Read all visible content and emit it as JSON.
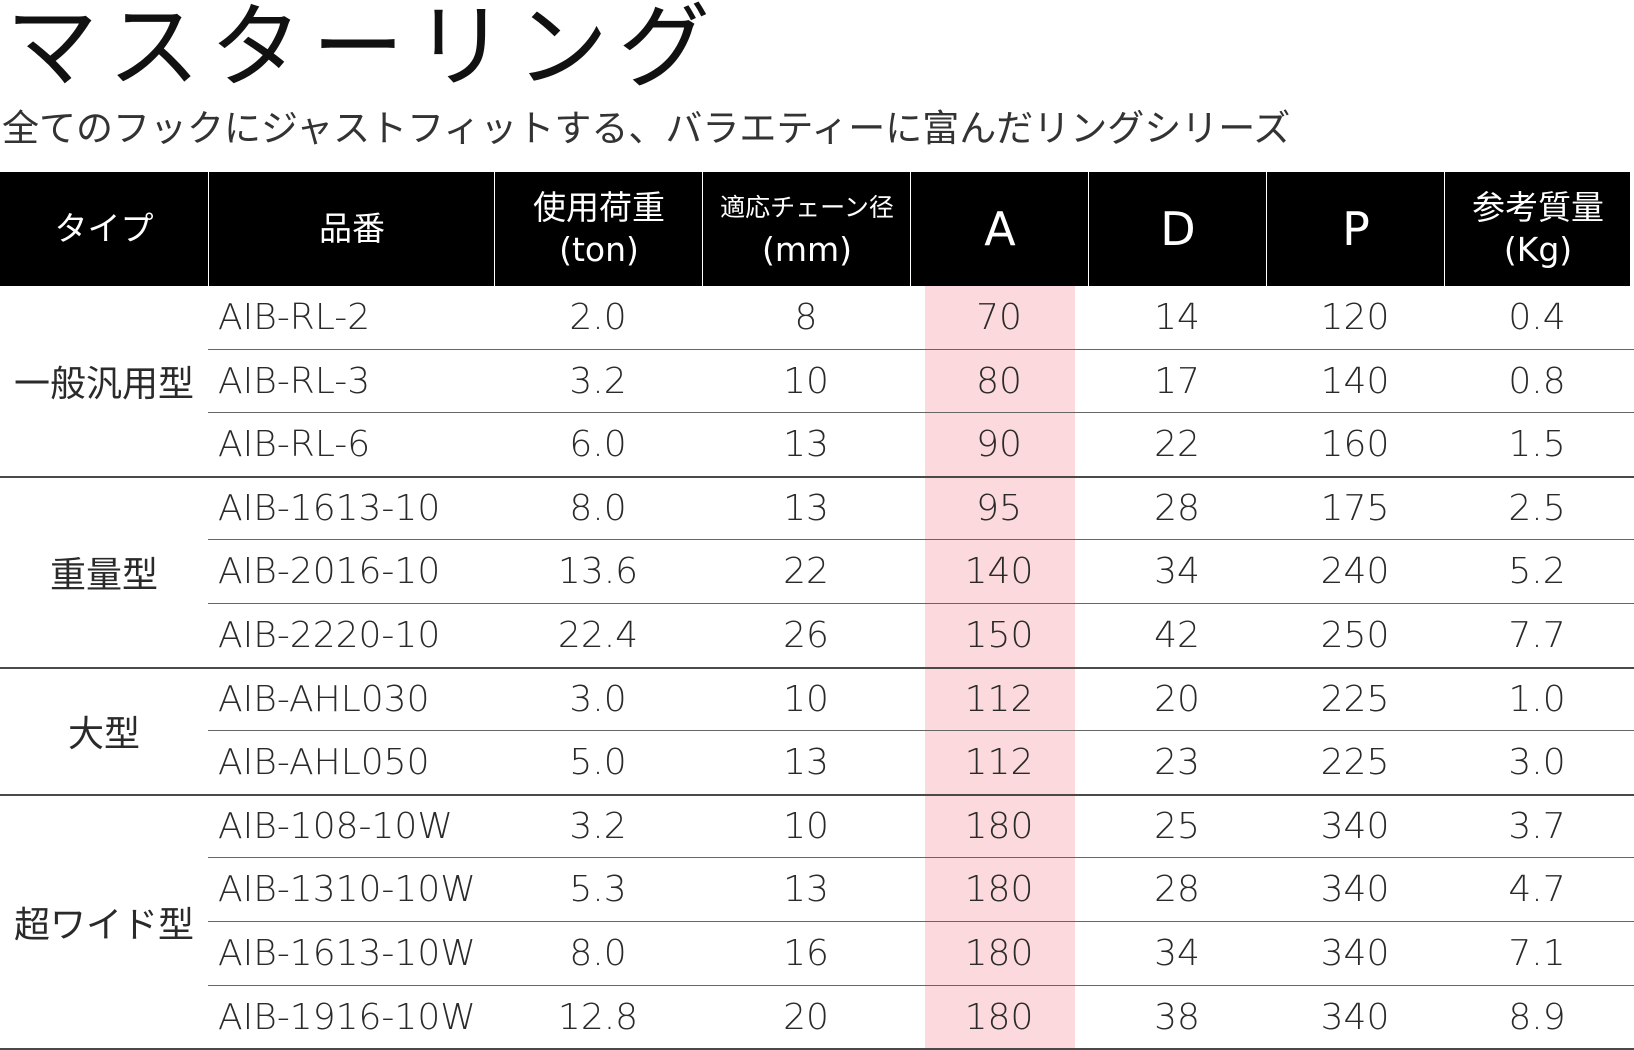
{
  "title": "マスターリング",
  "subtitle": "全てのフックにジャストフィットする、バラエティーに富んだリングシリーズ",
  "table": {
    "headers": [
      {
        "line1": "タイプ",
        "line2": "",
        "style": "normal"
      },
      {
        "line1": "品番",
        "line2": "",
        "style": "normal"
      },
      {
        "line1": "使用荷重",
        "line2": "(ton)",
        "style": "normal"
      },
      {
        "line1": "適応チェーン径",
        "line2": "(mm)",
        "style": "small"
      },
      {
        "line1": "A",
        "line2": "",
        "style": "big"
      },
      {
        "line1": "D",
        "line2": "",
        "style": "big"
      },
      {
        "line1": "P",
        "line2": "",
        "style": "big"
      },
      {
        "line1": "参考質量",
        "line2": "(Kg)",
        "style": "normal"
      }
    ],
    "highlight_color": "#fbd9dc",
    "groups": [
      {
        "type": "一般汎用型",
        "rows": [
          {
            "part": "AIB-RL-2",
            "load": "2.0",
            "chain": "8",
            "a": "70",
            "d": "14",
            "p": "120",
            "mass": "0.4"
          },
          {
            "part": "AIB-RL-3",
            "load": "3.2",
            "chain": "10",
            "a": "80",
            "d": "17",
            "p": "140",
            "mass": "0.8"
          },
          {
            "part": "AIB-RL-6",
            "load": "6.0",
            "chain": "13",
            "a": "90",
            "d": "22",
            "p": "160",
            "mass": "1.5"
          }
        ]
      },
      {
        "type": "重量型",
        "rows": [
          {
            "part": "AIB-1613-10",
            "load": "8.0",
            "chain": "13",
            "a": "95",
            "d": "28",
            "p": "175",
            "mass": "2.5"
          },
          {
            "part": "AIB-2016-10",
            "load": "13.6",
            "chain": "22",
            "a": "140",
            "d": "34",
            "p": "240",
            "mass": "5.2"
          },
          {
            "part": "AIB-2220-10",
            "load": "22.4",
            "chain": "26",
            "a": "150",
            "d": "42",
            "p": "250",
            "mass": "7.7"
          }
        ]
      },
      {
        "type": "大型",
        "rows": [
          {
            "part": "AIB-AHL030",
            "load": "3.0",
            "chain": "10",
            "a": "112",
            "d": "20",
            "p": "225",
            "mass": "1.0"
          },
          {
            "part": "AIB-AHL050",
            "load": "5.0",
            "chain": "13",
            "a": "112",
            "d": "23",
            "p": "225",
            "mass": "3.0"
          }
        ]
      },
      {
        "type": "超ワイド型",
        "rows": [
          {
            "part": "AIB-108-10W",
            "load": "3.2",
            "chain": "10",
            "a": "180",
            "d": "25",
            "p": "340",
            "mass": "3.7"
          },
          {
            "part": "AIB-1310-10W",
            "load": "5.3",
            "chain": "13",
            "a": "180",
            "d": "28",
            "p": "340",
            "mass": "4.7"
          },
          {
            "part": "AIB-1613-10W",
            "load": "8.0",
            "chain": "16",
            "a": "180",
            "d": "34",
            "p": "340",
            "mass": "7.1"
          },
          {
            "part": "AIB-1916-10W",
            "load": "12.8",
            "chain": "20",
            "a": "180",
            "d": "38",
            "p": "340",
            "mass": "8.9"
          }
        ]
      }
    ]
  }
}
